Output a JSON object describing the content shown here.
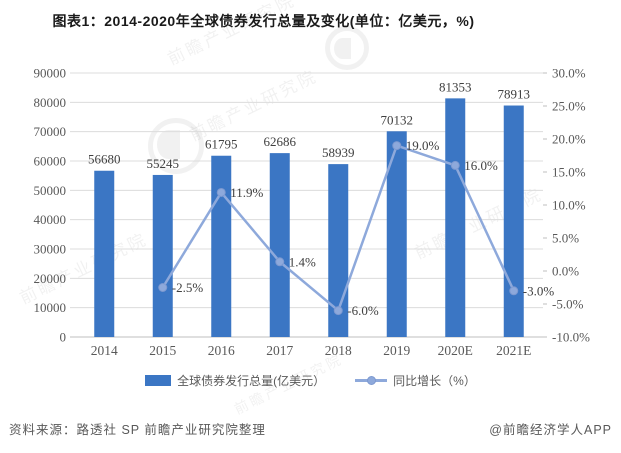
{
  "title": "图表1：2014-2020年全球债券发行总量及变化(单位：亿美元，%)",
  "chart_data": {
    "type": "bar",
    "subtype": "combo-bar-line",
    "title": "图表1：2014-2020年全球债券发行总量及变化(单位：亿美元，%)",
    "categories": [
      "2014",
      "2015",
      "2016",
      "2017",
      "2018",
      "2019",
      "2020E",
      "2021E"
    ],
    "series": [
      {
        "name": "全球债券发行总量(亿美元）",
        "type": "bar",
        "axis": "left",
        "color": "#3B76C4",
        "values": [
          56680,
          55245,
          61795,
          62686,
          58939,
          70132,
          81353,
          78913
        ],
        "value_labels": [
          "56680",
          "55245",
          "61795",
          "62686",
          "58939",
          "70132",
          "81353",
          "78913"
        ]
      },
      {
        "name": "同比增长（%）",
        "type": "line",
        "axis": "right",
        "color": "#8EA9DB",
        "marker_stroke": "#7D99D0",
        "values": [
          null,
          -2.5,
          11.9,
          1.4,
          -6.0,
          19.0,
          16.0,
          -3.0
        ],
        "point_labels": [
          "",
          "-2.5%",
          "11.9%",
          "1.4%",
          "-6.0%",
          "19.0%",
          "16.0%",
          "-3.0%"
        ]
      }
    ],
    "left_axis": {
      "min": 0,
      "max": 90000,
      "ticks": [
        "0",
        "10000",
        "20000",
        "30000",
        "40000",
        "50000",
        "60000",
        "70000",
        "80000",
        "90000"
      ]
    },
    "right_axis": {
      "min": -10,
      "max": 30,
      "ticks": [
        "-10.0%",
        "-5.0%",
        "0.0%",
        "5.0%",
        "10.0%",
        "15.0%",
        "20.0%",
        "25.0%",
        "30.0%"
      ]
    },
    "grid": true,
    "legend_position": "bottom",
    "colors": {
      "gridline": "#DCDCDC",
      "baseline": "#BFBFBF",
      "tick_label": "#595959",
      "data_label": "#404040"
    }
  },
  "footer": {
    "source": "资料来源：路透社 SP 前瞻产业研究院整理",
    "brand": "@前瞻经济学人APP"
  },
  "watermark": {
    "text": "前瞻产业研究院"
  }
}
